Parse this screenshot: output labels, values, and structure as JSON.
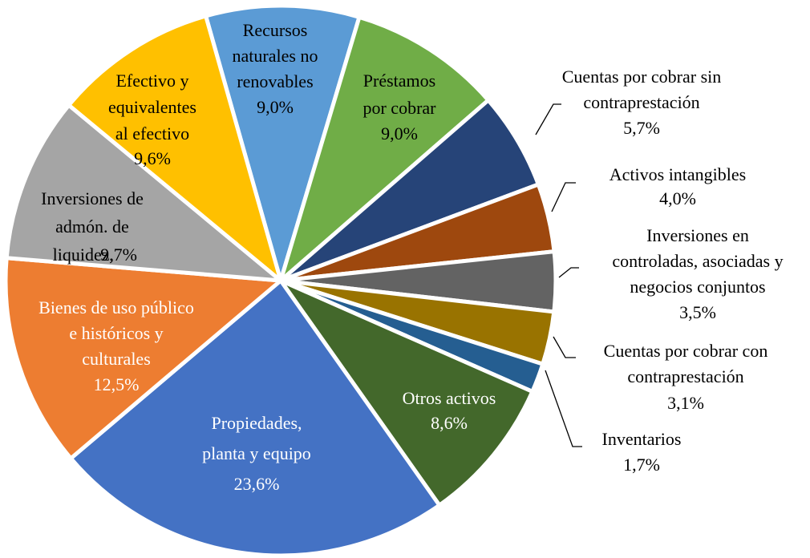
{
  "chart_data": {
    "type": "pie",
    "categories": [
      "Recursos\nnaturales no\nrenovables",
      "Préstamos\npor cobrar",
      "Cuentas por cobrar sin\ncontraprestación",
      "Activos intangibles",
      "Inversiones en\ncontroladas, asociadas y\nnegocios  conjuntos",
      "Cuentas por cobrar con\ncontraprestación",
      "Inventarios",
      "Otros activos",
      "Propiedades,\nplanta y equipo",
      "Bienes de uso público\ne históricos y\nculturales",
      "Inversiones de\nadmón. de\nliquidez,",
      "Efectivo y\nequivalentes\nal efectivo"
    ],
    "values": [
      9.0,
      9.0,
      5.7,
      4.0,
      3.5,
      3.1,
      1.7,
      8.6,
      23.6,
      12.5,
      9.7,
      9.6
    ],
    "value_labels": [
      "9,0%",
      "9,0%",
      "5,7%",
      "4,0%",
      "3,5%",
      "3,1%",
      "1,7%",
      "8,6%",
      "23,6%",
      "12,5%",
      "9,7%",
      "9,6%"
    ],
    "colors": [
      "#5b9bd5",
      "#70ad47",
      "#264478",
      "#9e480e",
      "#636363",
      "#997300",
      "#255e91",
      "#43682b",
      "#4472c4",
      "#ed7d31",
      "#a5a5a5",
      "#ffc000"
    ]
  }
}
